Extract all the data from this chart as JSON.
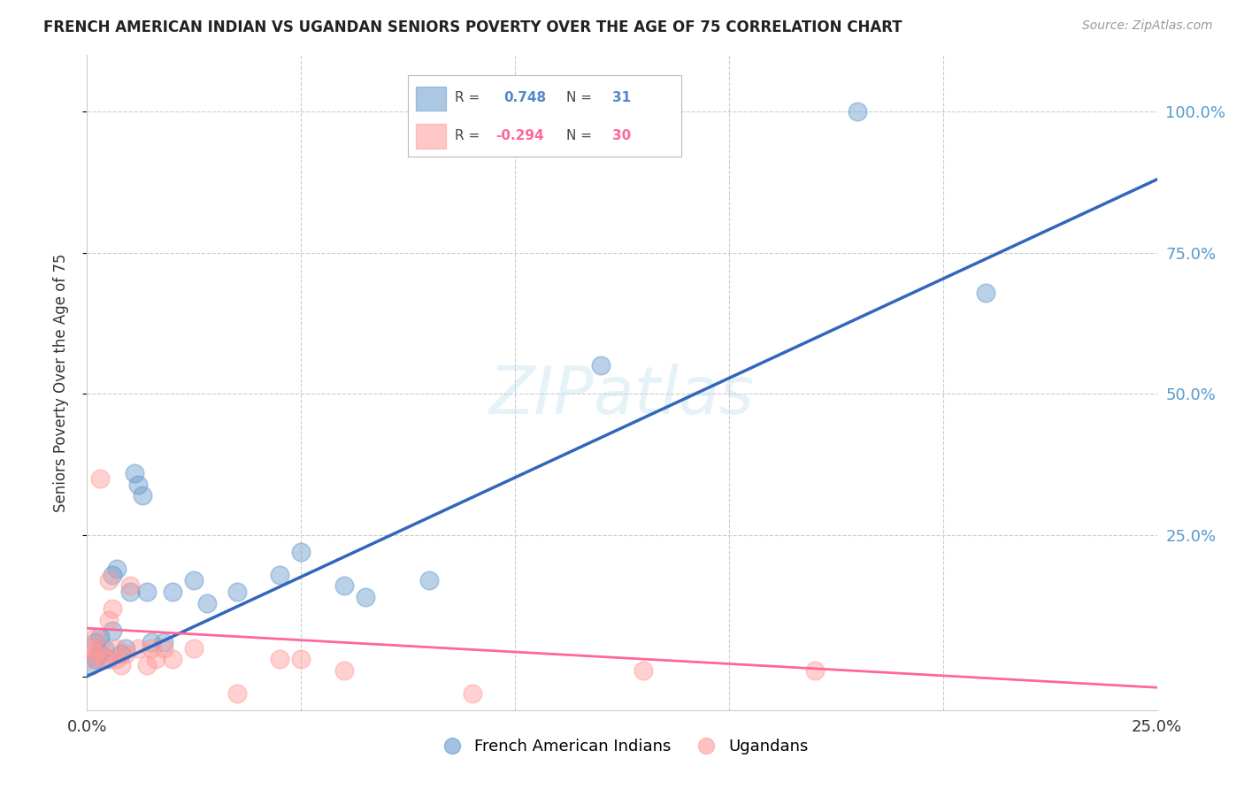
{
  "title": "FRENCH AMERICAN INDIAN VS UGANDAN SENIORS POVERTY OVER THE AGE OF 75 CORRELATION CHART",
  "source": "Source: ZipAtlas.com",
  "ylabel": "Seniors Poverty Over the Age of 75",
  "xlim": [
    0.0,
    0.25
  ],
  "ylim": [
    -0.06,
    1.1
  ],
  "yticks": [
    0.0,
    0.25,
    0.5,
    0.75,
    1.0
  ],
  "ytick_labels": [
    "",
    "25.0%",
    "50.0%",
    "75.0%",
    "100.0%"
  ],
  "xticks": [
    0.0,
    0.05,
    0.1,
    0.15,
    0.2,
    0.25
  ],
  "xtick_labels": [
    "0.0%",
    "",
    "",
    "",
    "",
    "25.0%"
  ],
  "legend_blue_r": "0.748",
  "legend_blue_n": "31",
  "legend_pink_r": "-0.294",
  "legend_pink_n": "30",
  "watermark": "ZIPatlas",
  "blue_color": "#6699CC",
  "pink_color": "#FF9999",
  "blue_scatter": [
    [
      0.001,
      0.02
    ],
    [
      0.002,
      0.03
    ],
    [
      0.002,
      0.06
    ],
    [
      0.003,
      0.04
    ],
    [
      0.003,
      0.07
    ],
    [
      0.004,
      0.05
    ],
    [
      0.005,
      0.03
    ],
    [
      0.006,
      0.08
    ],
    [
      0.006,
      0.18
    ],
    [
      0.007,
      0.19
    ],
    [
      0.008,
      0.04
    ],
    [
      0.009,
      0.05
    ],
    [
      0.01,
      0.15
    ],
    [
      0.011,
      0.36
    ],
    [
      0.012,
      0.34
    ],
    [
      0.013,
      0.32
    ],
    [
      0.014,
      0.15
    ],
    [
      0.015,
      0.06
    ],
    [
      0.018,
      0.06
    ],
    [
      0.02,
      0.15
    ],
    [
      0.025,
      0.17
    ],
    [
      0.028,
      0.13
    ],
    [
      0.035,
      0.15
    ],
    [
      0.045,
      0.18
    ],
    [
      0.05,
      0.22
    ],
    [
      0.06,
      0.16
    ],
    [
      0.065,
      0.14
    ],
    [
      0.08,
      0.17
    ],
    [
      0.12,
      0.55
    ],
    [
      0.18,
      1.0
    ],
    [
      0.21,
      0.68
    ]
  ],
  "pink_scatter": [
    [
      0.001,
      0.03
    ],
    [
      0.001,
      0.05
    ],
    [
      0.002,
      0.04
    ],
    [
      0.002,
      0.07
    ],
    [
      0.003,
      0.05
    ],
    [
      0.003,
      0.35
    ],
    [
      0.004,
      0.03
    ],
    [
      0.004,
      0.03
    ],
    [
      0.005,
      0.1
    ],
    [
      0.005,
      0.17
    ],
    [
      0.006,
      0.12
    ],
    [
      0.007,
      0.05
    ],
    [
      0.007,
      0.03
    ],
    [
      0.008,
      0.02
    ],
    [
      0.009,
      0.04
    ],
    [
      0.01,
      0.16
    ],
    [
      0.012,
      0.05
    ],
    [
      0.014,
      0.02
    ],
    [
      0.015,
      0.05
    ],
    [
      0.016,
      0.03
    ],
    [
      0.018,
      0.05
    ],
    [
      0.02,
      0.03
    ],
    [
      0.025,
      0.05
    ],
    [
      0.035,
      -0.03
    ],
    [
      0.045,
      0.03
    ],
    [
      0.05,
      0.03
    ],
    [
      0.06,
      0.01
    ],
    [
      0.09,
      -0.03
    ],
    [
      0.13,
      0.01
    ],
    [
      0.17,
      0.01
    ]
  ],
  "blue_line_x": [
    0.0,
    0.25
  ],
  "blue_line_y": [
    0.0,
    0.88
  ],
  "pink_line_x": [
    0.0,
    0.25
  ],
  "pink_line_y": [
    0.085,
    -0.02
  ],
  "background_color": "#FFFFFF",
  "grid_color": "#CCCCCC",
  "title_color": "#222222",
  "axis_color": "#333333",
  "right_ytick_color": "#5599CC"
}
